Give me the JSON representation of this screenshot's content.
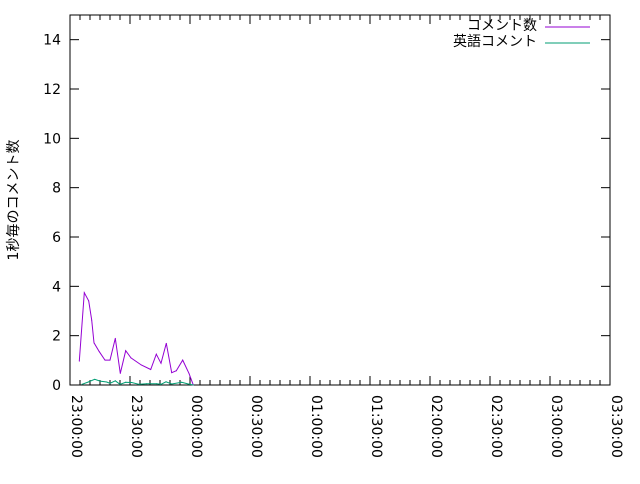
{
  "chart_data": {
    "type": "line",
    "title": "",
    "xlabel": "",
    "ylabel": "1秒毎のコメント数",
    "xlim": [
      "23:00:00",
      "03:30:00"
    ],
    "ylim": [
      0,
      15
    ],
    "xticks": [
      "23:00:00",
      "23:30:00",
      "00:00:00",
      "00:30:00",
      "01:00:00",
      "01:30:00",
      "02:00:00",
      "02:30:00",
      "03:00:00",
      "03:30:00"
    ],
    "yticks": [
      "0",
      "2",
      "4",
      "6",
      "8",
      "10",
      "12",
      "14"
    ],
    "grid": false,
    "legend": "top-right",
    "series": [
      {
        "name": "コメント数",
        "color": "#9400d3",
        "x": [
          "23:04:40",
          "23:07:10",
          "23:09:20",
          "23:10:50",
          "23:12:00",
          "23:14:40",
          "23:17:30",
          "23:20:00",
          "23:22:40",
          "23:25:10",
          "23:27:50",
          "23:30:30",
          "23:35:40",
          "23:40:20",
          "23:43:10",
          "23:45:30",
          "23:48:10",
          "23:50:50",
          "23:53:10",
          "23:56:20",
          "23:59:30",
          "00:01:40"
        ],
        "y": [
          0.97,
          3.74,
          3.41,
          2.63,
          1.71,
          1.35,
          1.01,
          1.01,
          1.89,
          0.47,
          1.39,
          1.1,
          0.81,
          0.63,
          1.25,
          0.88,
          1.69,
          0.5,
          0.58,
          1.01,
          0.47,
          0
        ]
      },
      {
        "name": "英語コメント",
        "color": "#009e73",
        "x": [
          "23:06:00",
          "23:09:10",
          "23:12:20",
          "23:15:00",
          "23:18:20",
          "23:20:00",
          "23:22:40",
          "23:25:00",
          "23:27:50",
          "23:30:50",
          "23:34:30",
          "23:38:20",
          "23:43:20",
          "23:45:30",
          "23:48:00",
          "23:50:50",
          "23:55:50",
          "23:59:10",
          "00:01:40"
        ],
        "y": [
          0.03,
          0.12,
          0.23,
          0.16,
          0.12,
          0.07,
          0.17,
          0.03,
          0.11,
          0.1,
          0.03,
          0.05,
          0.05,
          0.03,
          0.13,
          0.04,
          0.11,
          0.04,
          0
        ]
      }
    ]
  }
}
